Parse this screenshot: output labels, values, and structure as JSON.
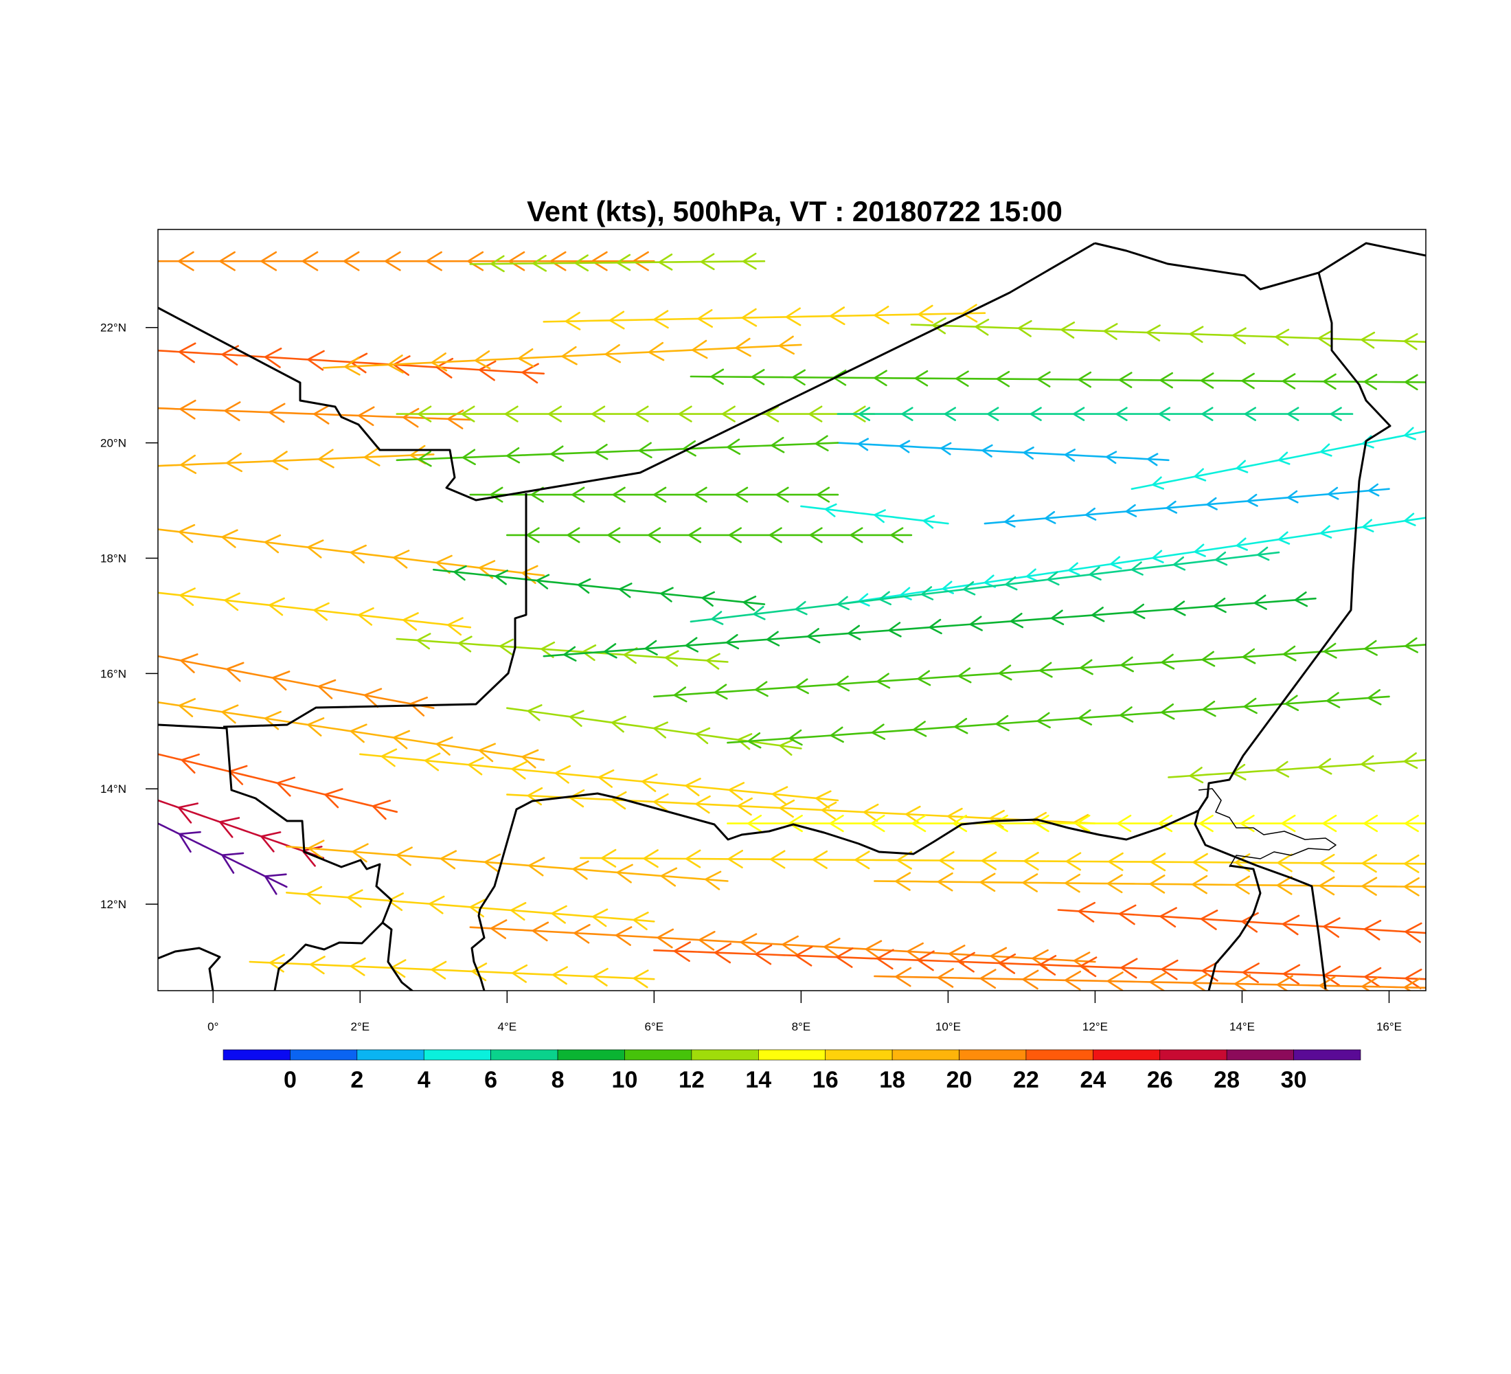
{
  "title": "Vent (kts), 500hPa, VT : 20180722  15:00",
  "map": {
    "lon_range": [
      -0.75,
      16.5
    ],
    "lat_range": [
      10.5,
      23.7
    ],
    "lon_ticks": [
      {
        "value": 0,
        "label": "0°"
      },
      {
        "value": 2,
        "label": "2°E"
      },
      {
        "value": 4,
        "label": "4°E"
      },
      {
        "value": 6,
        "label": "6°E"
      },
      {
        "value": 8,
        "label": "8°E"
      },
      {
        "value": 10,
        "label": "10°E"
      },
      {
        "value": 12,
        "label": "12°E"
      },
      {
        "value": 14,
        "label": "14°E"
      },
      {
        "value": 16,
        "label": "16°E"
      }
    ],
    "lat_ticks": [
      {
        "value": 12,
        "label": "12°N"
      },
      {
        "value": 14,
        "label": "14°N"
      },
      {
        "value": 16,
        "label": "16°N"
      },
      {
        "value": 18,
        "label": "18°N"
      },
      {
        "value": 20,
        "label": "20°N"
      },
      {
        "value": 22,
        "label": "22°N"
      }
    ],
    "border_color": "#000000"
  },
  "colorbar": {
    "labels": [
      "0",
      "2",
      "4",
      "6",
      "8",
      "10",
      "12",
      "14",
      "16",
      "18",
      "20",
      "22",
      "24",
      "26",
      "28",
      "30"
    ],
    "colors": [
      "#0a0af2",
      "#0a64f2",
      "#0ab4f2",
      "#0af0dc",
      "#0ad28c",
      "#0ab432",
      "#46c30a",
      "#a0dc0a",
      "#ffff0a",
      "#ffd20a",
      "#ffb40a",
      "#ff8c0a",
      "#ff5a0a",
      "#f01414",
      "#c80a32",
      "#8c0a5a",
      "#5a0a96"
    ]
  },
  "wind": {
    "units": "kts",
    "level": "500hPa",
    "streams": [
      {
        "lat": 23.15,
        "lon_start": -0.75,
        "lon_end": 6.0,
        "speed": 20,
        "dlat": 0.0
      },
      {
        "lat": 23.1,
        "lon_start": 3.5,
        "lon_end": 7.5,
        "speed": 13,
        "dlat": 0.05
      },
      {
        "lat": 22.1,
        "lon_start": 4.5,
        "lon_end": 10.5,
        "speed": 17,
        "dlat": 0.15
      },
      {
        "lat": 22.05,
        "lon_start": 9.5,
        "lon_end": 16.5,
        "speed": 13,
        "dlat": -0.3
      },
      {
        "lat": 21.6,
        "lon_start": -0.75,
        "lon_end": 4.5,
        "speed": 22,
        "dlat": -0.4
      },
      {
        "lat": 21.3,
        "lon_start": 1.5,
        "lon_end": 8.0,
        "speed": 18,
        "dlat": 0.4
      },
      {
        "lat": 21.15,
        "lon_start": 6.5,
        "lon_end": 16.5,
        "speed": 11,
        "dlat": -0.1
      },
      {
        "lat": 20.6,
        "lon_start": -0.75,
        "lon_end": 3.5,
        "speed": 20,
        "dlat": -0.2
      },
      {
        "lat": 20.5,
        "lon_start": 2.5,
        "lon_end": 9.0,
        "speed": 12,
        "dlat": 0.0
      },
      {
        "lat": 20.5,
        "lon_start": 8.5,
        "lon_end": 15.5,
        "speed": 6,
        "dlat": 0.0
      },
      {
        "lat": 20.0,
        "lon_start": 8.5,
        "lon_end": 13.0,
        "speed": 3,
        "dlat": -0.3
      },
      {
        "lat": 19.6,
        "lon_start": -0.75,
        "lon_end": 3.0,
        "speed": 19,
        "dlat": 0.2
      },
      {
        "lat": 19.7,
        "lon_start": 2.5,
        "lon_end": 8.5,
        "speed": 11,
        "dlat": 0.3
      },
      {
        "lat": 19.2,
        "lon_start": 12.5,
        "lon_end": 16.5,
        "speed": 4,
        "dlat": 1.0
      },
      {
        "lat": 19.1,
        "lon_start": 3.5,
        "lon_end": 8.5,
        "speed": 10,
        "dlat": 0.0
      },
      {
        "lat": 18.9,
        "lon_start": 8.0,
        "lon_end": 10.0,
        "speed": 5,
        "dlat": -0.3
      },
      {
        "lat": 18.6,
        "lon_start": 10.5,
        "lon_end": 16.0,
        "speed": 3,
        "dlat": 0.6
      },
      {
        "lat": 18.4,
        "lon_start": 4.0,
        "lon_end": 9.5,
        "speed": 10,
        "dlat": 0.0
      },
      {
        "lat": 18.5,
        "lon_start": -0.75,
        "lon_end": 4.5,
        "speed": 18,
        "dlat": -0.8
      },
      {
        "lat": 17.8,
        "lon_start": 3.0,
        "lon_end": 7.5,
        "speed": 9,
        "dlat": -0.6
      },
      {
        "lat": 17.2,
        "lon_start": 8.5,
        "lon_end": 16.5,
        "speed": 4,
        "dlat": 1.5
      },
      {
        "lat": 17.4,
        "lon_start": -0.75,
        "lon_end": 3.5,
        "speed": 17,
        "dlat": -0.6
      },
      {
        "lat": 16.9,
        "lon_start": 6.5,
        "lon_end": 14.5,
        "speed": 6,
        "dlat": 1.2
      },
      {
        "lat": 16.6,
        "lon_start": 2.5,
        "lon_end": 7.0,
        "speed": 12,
        "dlat": -0.4
      },
      {
        "lat": 16.3,
        "lon_start": 4.5,
        "lon_end": 15.0,
        "speed": 9,
        "dlat": 1.0
      },
      {
        "lat": 16.3,
        "lon_start": -0.75,
        "lon_end": 3.0,
        "speed": 21,
        "dlat": -0.9
      },
      {
        "lat": 15.6,
        "lon_start": 6.0,
        "lon_end": 16.5,
        "speed": 10,
        "dlat": 0.9
      },
      {
        "lat": 15.4,
        "lon_start": 4.0,
        "lon_end": 8.0,
        "speed": 13,
        "dlat": -0.7
      },
      {
        "lat": 15.5,
        "lon_start": -0.75,
        "lon_end": 4.5,
        "speed": 19,
        "dlat": -1.0
      },
      {
        "lat": 14.8,
        "lon_start": 7.0,
        "lon_end": 16.0,
        "speed": 11,
        "dlat": 0.8
      },
      {
        "lat": 14.6,
        "lon_start": 2.0,
        "lon_end": 8.5,
        "speed": 17,
        "dlat": -0.8
      },
      {
        "lat": 14.6,
        "lon_start": -0.75,
        "lon_end": 2.5,
        "speed": 22,
        "dlat": -1.0
      },
      {
        "lat": 14.2,
        "lon_start": 13.0,
        "lon_end": 16.5,
        "speed": 12,
        "dlat": 0.3
      },
      {
        "lat": 13.9,
        "lon_start": 4.0,
        "lon_end": 12.0,
        "speed": 16,
        "dlat": -0.5
      },
      {
        "lat": 13.8,
        "lon_start": -0.75,
        "lon_end": 1.5,
        "speed": 26,
        "dlat": -1.0
      },
      {
        "lat": 13.4,
        "lon_start": 7.0,
        "lon_end": 16.5,
        "speed": 14,
        "dlat": 0.0
      },
      {
        "lat": 13.4,
        "lon_start": -0.75,
        "lon_end": 1.0,
        "speed": 30,
        "dlat": -1.1
      },
      {
        "lat": 13.0,
        "lon_start": 1.0,
        "lon_end": 7.0,
        "speed": 19,
        "dlat": -0.6
      },
      {
        "lat": 12.8,
        "lon_start": 5.0,
        "lon_end": 16.5,
        "speed": 17,
        "dlat": -0.1
      },
      {
        "lat": 12.4,
        "lon_start": 9.0,
        "lon_end": 16.5,
        "speed": 18,
        "dlat": -0.1
      },
      {
        "lat": 12.2,
        "lon_start": 1.0,
        "lon_end": 6.0,
        "speed": 17,
        "dlat": -0.5
      },
      {
        "lat": 11.9,
        "lon_start": 11.5,
        "lon_end": 16.5,
        "speed": 22,
        "dlat": -0.4
      },
      {
        "lat": 11.6,
        "lon_start": 3.5,
        "lon_end": 12.0,
        "speed": 20,
        "dlat": -0.6
      },
      {
        "lat": 11.2,
        "lon_start": 6.0,
        "lon_end": 16.5,
        "speed": 22,
        "dlat": -0.5
      },
      {
        "lat": 11.0,
        "lon_start": 0.5,
        "lon_end": 6.0,
        "speed": 17,
        "dlat": -0.3
      },
      {
        "lat": 10.75,
        "lon_start": 9.0,
        "lon_end": 16.5,
        "speed": 20,
        "dlat": -0.2
      }
    ]
  }
}
